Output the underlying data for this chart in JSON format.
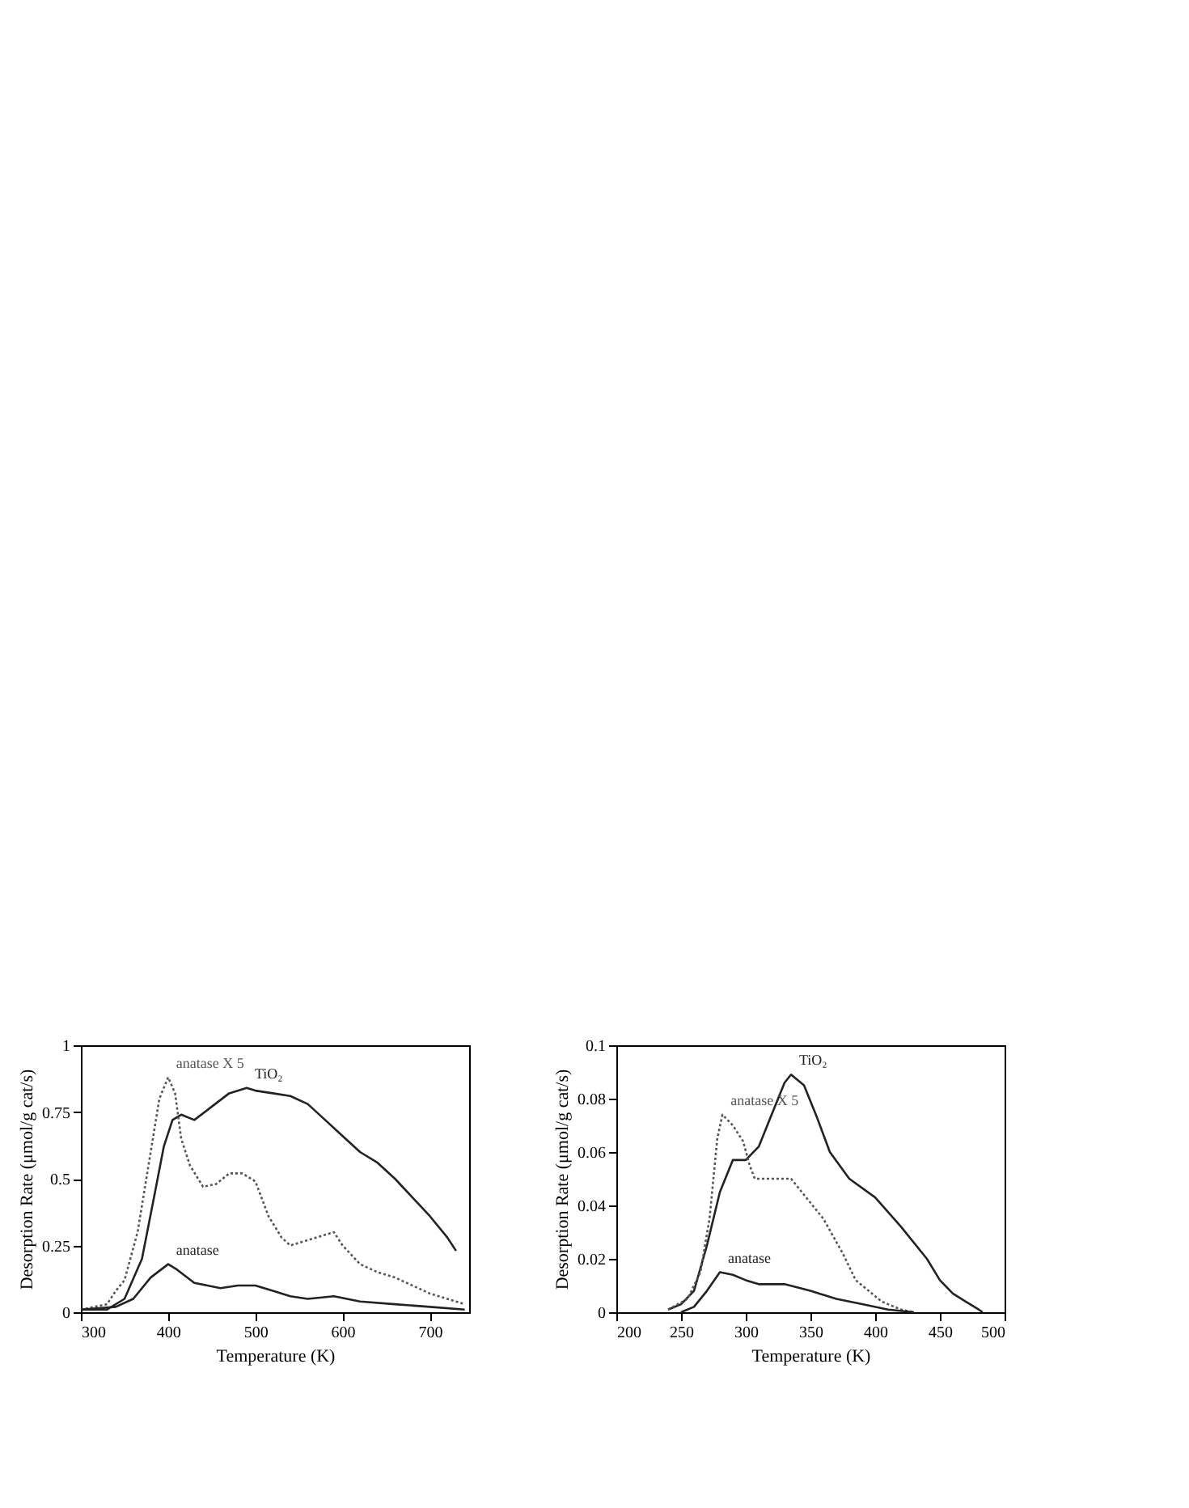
{
  "chart_data": [
    {
      "type": "line",
      "xlabel": "Temperature (K)",
      "ylabel": "Desorption Rate (μmol/g cat/s)",
      "xlim": [
        300,
        745
      ],
      "xticks": [
        300,
        400,
        500,
        600,
        700
      ],
      "ylim": [
        0,
        1
      ],
      "yticks": [
        0,
        0.25,
        0.5,
        0.75,
        1
      ],
      "grid": false,
      "legend": false,
      "marker": "none",
      "series": [
        {
          "name": "TiO₂",
          "color": "#222222",
          "line_style": "solid",
          "x": [
            300,
            330,
            350,
            370,
            385,
            395,
            405,
            415,
            430,
            450,
            470,
            490,
            500,
            520,
            540,
            560,
            580,
            600,
            620,
            640,
            660,
            680,
            700,
            720,
            730
          ],
          "values": [
            0.01,
            0.01,
            0.05,
            0.2,
            0.45,
            0.62,
            0.72,
            0.74,
            0.72,
            0.77,
            0.82,
            0.84,
            0.83,
            0.82,
            0.81,
            0.78,
            0.72,
            0.66,
            0.6,
            0.56,
            0.5,
            0.43,
            0.36,
            0.28,
            0.23
          ]
        },
        {
          "name": "anatase X 5",
          "color": "#555555",
          "line_style": "dotted",
          "x": [
            300,
            330,
            340,
            350,
            365,
            380,
            390,
            400,
            408,
            415,
            425,
            440,
            455,
            470,
            485,
            500,
            515,
            530,
            540,
            560,
            580,
            590,
            600,
            620,
            640,
            660,
            680,
            700,
            720,
            740
          ],
          "values": [
            0.01,
            0.03,
            0.08,
            0.12,
            0.3,
            0.6,
            0.8,
            0.88,
            0.82,
            0.65,
            0.55,
            0.47,
            0.48,
            0.52,
            0.52,
            0.49,
            0.36,
            0.28,
            0.25,
            0.27,
            0.29,
            0.3,
            0.25,
            0.18,
            0.15,
            0.13,
            0.1,
            0.07,
            0.05,
            0.03
          ]
        },
        {
          "name": "anatase",
          "color": "#222222",
          "line_style": "solid",
          "x": [
            300,
            340,
            360,
            380,
            400,
            410,
            430,
            460,
            480,
            500,
            520,
            540,
            560,
            590,
            620,
            660,
            700,
            740
          ],
          "values": [
            0.01,
            0.02,
            0.05,
            0.13,
            0.18,
            0.16,
            0.11,
            0.09,
            0.1,
            0.1,
            0.08,
            0.06,
            0.05,
            0.06,
            0.04,
            0.03,
            0.02,
            0.01
          ]
        }
      ]
    },
    {
      "type": "line",
      "xlabel": "Temperature (K)",
      "ylabel": "Desorption Rate (μmol/g cat/s)",
      "xlim": [
        200,
        500
      ],
      "xticks": [
        200,
        250,
        300,
        350,
        400,
        450,
        500
      ],
      "ylim": [
        0,
        0.1
      ],
      "yticks": [
        0,
        0.02,
        0.04,
        0.06,
        0.08,
        0.1
      ],
      "grid": false,
      "legend": false,
      "marker": "none",
      "series": [
        {
          "name": "TiO₂",
          "color": "#222222",
          "line_style": "solid",
          "x": [
            240,
            250,
            260,
            270,
            280,
            290,
            300,
            310,
            320,
            330,
            335,
            345,
            355,
            365,
            380,
            400,
            420,
            440,
            450,
            460,
            470,
            480,
            483
          ],
          "values": [
            0.001,
            0.003,
            0.008,
            0.025,
            0.045,
            0.057,
            0.057,
            0.062,
            0.074,
            0.086,
            0.089,
            0.085,
            0.073,
            0.06,
            0.05,
            0.043,
            0.032,
            0.02,
            0.012,
            0.007,
            0.004,
            0.001,
            0
          ]
        },
        {
          "name": "anatase X 5",
          "color": "#555555",
          "line_style": "dotted",
          "x": [
            240,
            255,
            265,
            272,
            278,
            282,
            290,
            298,
            303,
            307,
            320,
            335,
            345,
            360,
            375,
            385,
            395,
            405,
            420,
            430
          ],
          "values": [
            0.001,
            0.005,
            0.015,
            0.035,
            0.065,
            0.074,
            0.07,
            0.064,
            0.055,
            0.05,
            0.05,
            0.05,
            0.044,
            0.035,
            0.022,
            0.012,
            0.008,
            0.004,
            0.001,
            0
          ]
        },
        {
          "name": "anatase",
          "color": "#222222",
          "line_style": "solid",
          "x": [
            250,
            260,
            270,
            280,
            290,
            300,
            310,
            330,
            350,
            370,
            390,
            410,
            430
          ],
          "values": [
            0,
            0.002,
            0.008,
            0.015,
            0.014,
            0.012,
            0.0105,
            0.0105,
            0.008,
            0.005,
            0.003,
            0.001,
            0
          ]
        }
      ]
    }
  ]
}
